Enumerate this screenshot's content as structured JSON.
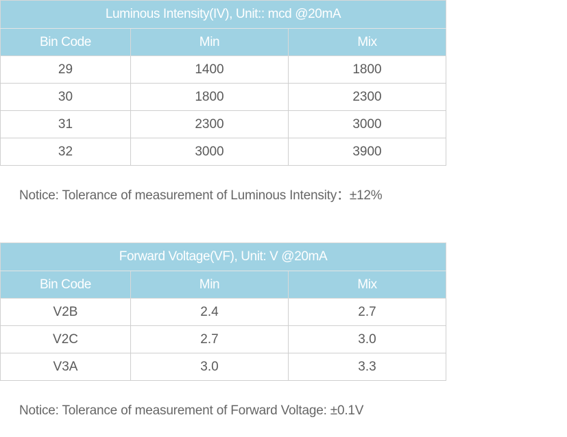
{
  "tables": [
    {
      "title": "Luminous Intensity(IV), Unit:: mcd @20mA",
      "headers": [
        "Bin Code",
        "Min",
        "Mix"
      ],
      "rows": [
        [
          "29",
          "1400",
          "1800"
        ],
        [
          "30",
          "1800",
          "2300"
        ],
        [
          "31",
          "2300",
          "3000"
        ],
        [
          "32",
          "3000",
          "3900"
        ]
      ],
      "notice": "Notice: Tolerance of measurement of Luminous Intensity：±12%"
    },
    {
      "title": "Forward Voltage(VF), Unit: V @20mA",
      "headers": [
        "Bin Code",
        "Min",
        "Mix"
      ],
      "rows": [
        [
          "V2B",
          "2.4",
          "2.7"
        ],
        [
          "V2C",
          "2.7",
          "3.0"
        ],
        [
          "V3A",
          "3.0",
          "3.3"
        ]
      ],
      "notice": "Notice: Tolerance of measurement of Forward Voltage: ±0.1V"
    }
  ],
  "colors": {
    "header_bg": "#9fd2e3",
    "header_text": "#ffffff",
    "cell_text": "#5a5a5a",
    "border": "#cfcfcf"
  }
}
